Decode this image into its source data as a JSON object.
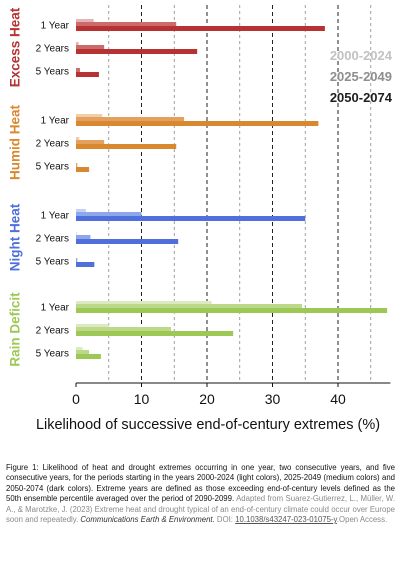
{
  "chart_data": {
    "type": "bar",
    "orientation": "horizontal",
    "xlabel": "Likelihood of successive end-of-century extremes (%)",
    "xlim": [
      0,
      48
    ],
    "xticks": [
      0,
      10,
      20,
      30,
      40
    ],
    "grid": "vertical dashed at every 5",
    "legend_placement": "top-right",
    "periods": [
      {
        "name": "2000-2024",
        "shade": "light"
      },
      {
        "name": "2025-2049",
        "shade": "medium"
      },
      {
        "name": "2050-2074",
        "shade": "dark"
      }
    ],
    "groups": [
      {
        "name": "Excess Heat",
        "colors": {
          "light": "#e8b2b2",
          "medium": "#cc6b6b",
          "dark": "#b73232"
        },
        "categories": [
          "1 Year",
          "2 Years",
          "5 Years"
        ],
        "series": [
          {
            "name": "2000-2024",
            "values": [
              2.7,
              0.4,
              0.0
            ]
          },
          {
            "name": "2025-2049",
            "values": [
              15.3,
              4.3,
              0.6
            ]
          },
          {
            "name": "2050-2074",
            "values": [
              38.0,
              18.5,
              3.5
            ]
          }
        ]
      },
      {
        "name": "Humid Heat",
        "colors": {
          "light": "#f0cfa8",
          "medium": "#e4a05e",
          "dark": "#d9882f"
        },
        "categories": [
          "1 Year",
          "2 Years",
          "5 Years"
        ],
        "series": [
          {
            "name": "2000-2024",
            "values": [
              4.0,
              0.5,
              0.0
            ]
          },
          {
            "name": "2025-2049",
            "values": [
              16.5,
              4.3,
              0.2
            ]
          },
          {
            "name": "2050-2074",
            "values": [
              37.0,
              15.3,
              2.0
            ]
          }
        ]
      },
      {
        "name": "Night Heat",
        "colors": {
          "light": "#c3cff3",
          "medium": "#8ea6ea",
          "dark": "#4f6fdc"
        },
        "categories": [
          "1 Year",
          "2 Years",
          "5 Years"
        ],
        "series": [
          {
            "name": "2000-2024",
            "values": [
              1.5,
              0.1,
              0.0
            ]
          },
          {
            "name": "2025-2049",
            "values": [
              10.0,
              2.2,
              0.2
            ]
          },
          {
            "name": "2050-2074",
            "values": [
              35.0,
              15.6,
              2.8
            ]
          }
        ]
      },
      {
        "name": "Rain Deficit",
        "colors": {
          "light": "#dbeac0",
          "medium": "#bcd98a",
          "dark": "#9dc855"
        },
        "categories": [
          "1 Year",
          "2 Years",
          "5 Years"
        ],
        "series": [
          {
            "name": "2000-2024",
            "values": [
              20.7,
              5.0,
              1.0
            ]
          },
          {
            "name": "2025-2049",
            "values": [
              34.5,
              14.5,
              2.0
            ]
          },
          {
            "name": "2050-2074",
            "values": [
              47.5,
              24.0,
              3.8
            ]
          }
        ]
      }
    ]
  },
  "caption": {
    "main": "Figure 1: Likelihood of heat and drought extremes occurring in one year, two consecutive years, and five consecutive years, for the periods starting in the years 2000-2024 (light colors), 2025-2049 (medium colors) and 2050-2074 (dark colors). Extreme years are defined as those exceeding end-of-century levels defined as the 50th ensemble percentile averaged over the period of 2090-2099.",
    "source_lead": " Adapted from Suarez-Gutierrez, L., Müller, W. A., & Marotzke, J. (2023) Extreme heat and drought typical of an end-of-century climate could occur over Europe soon and repeatedly. ",
    "journal": "Communications Earth & Environment.",
    "doi_label": " DOI: ",
    "doi": "10.1038/s43247-023-01075-y",
    "access": ".Open Access."
  }
}
